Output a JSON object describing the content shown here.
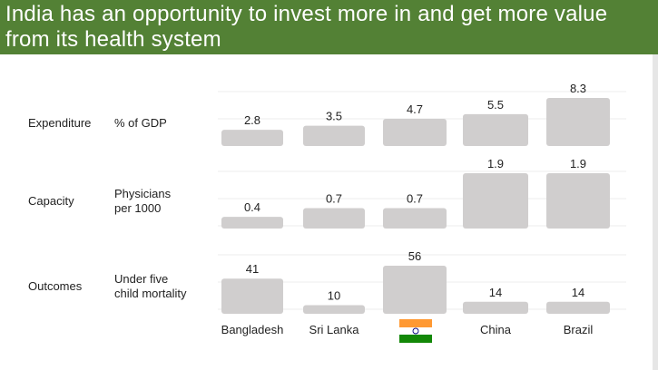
{
  "title": "India has an opportunity to invest more in and get more value from its health system",
  "colors": {
    "header_bg": "#538135",
    "bar": "#d0cece",
    "text": "#222222",
    "flag_saffron": "#ff9933",
    "flag_green": "#138808",
    "chakra": "#000080"
  },
  "chart_data": {
    "type": "bar",
    "categories": [
      "Bangladesh",
      "Sri Lanka",
      "India",
      "China",
      "Brazil"
    ],
    "category_labels": [
      "Bangladesh",
      "Sri Lanka",
      "",
      "China",
      "Brazil"
    ],
    "india_category_icon": "india-flag-icon",
    "rows": [
      {
        "group": "Expenditure",
        "metric": "% of GDP",
        "values": [
          2.8,
          3.5,
          4.7,
          5.5,
          8.3
        ],
        "labels": [
          "2.8",
          "3.5",
          "4.7",
          "5.5",
          "8.3"
        ]
      },
      {
        "group": "Capacity",
        "metric": "Physicians\nper 1000",
        "values": [
          0.4,
          0.7,
          0.7,
          1.9,
          1.9
        ],
        "labels": [
          "0.4",
          "0.7",
          "0.7",
          "1.9",
          "1.9"
        ]
      },
      {
        "group": "Outcomes",
        "metric": "Under five\nchild mortality",
        "values": [
          41,
          10,
          56,
          14,
          14
        ],
        "labels": [
          "41",
          "10",
          "56",
          "14",
          "14"
        ]
      }
    ]
  }
}
